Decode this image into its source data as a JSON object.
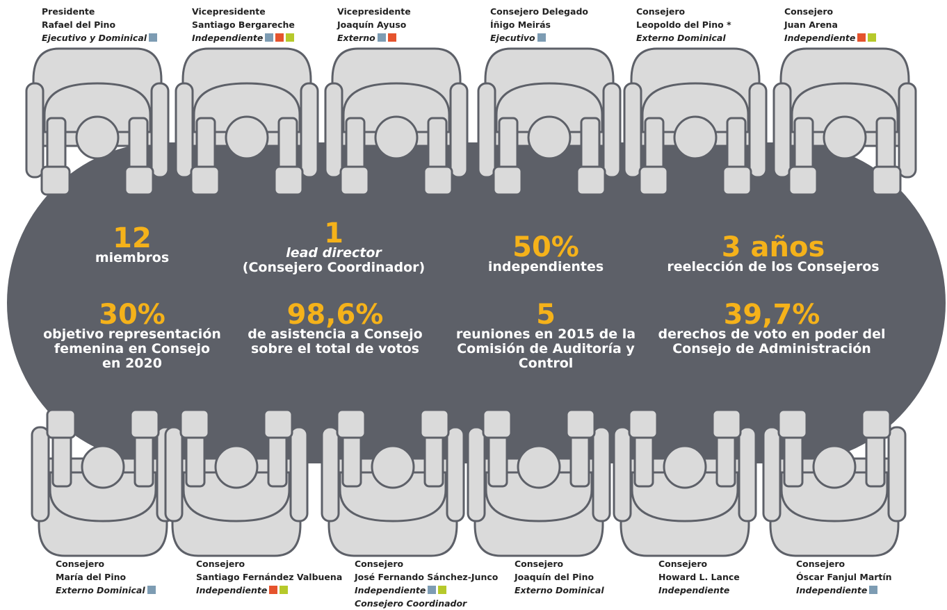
{
  "top_members": [
    {
      "role": "Presidente",
      "name": "Rafael del Pino",
      "type": "Ejecutivo y Dominical",
      "badges": [
        "#7d9cb3"
      ]
    },
    {
      "role": "Vicepresidente",
      "name": "Santiago Bergareche",
      "type": "Independiente",
      "badges": [
        "#7d9cb3",
        "#e5532d",
        "#b6c92b"
      ]
    },
    {
      "role": "Vicepresidente",
      "name": "Joaquín Ayuso",
      "type": "Externo",
      "badges": [
        "#7d9cb3",
        "#e5532d"
      ]
    },
    {
      "role": "Consejero Delegado",
      "name": "Íñigo Meirás",
      "type": "Ejecutivo",
      "badges": [
        "#7d9cb3"
      ]
    },
    {
      "role": "Consejero",
      "name": "Leopoldo del Pino *",
      "type": "Externo Dominical",
      "badges": []
    },
    {
      "role": "Consejero",
      "name": "Juan Arena",
      "type": "Independiente",
      "badges": [
        "#e5532d",
        "#b6c92b"
      ]
    }
  ],
  "bottom_members": [
    {
      "role": "Consejero",
      "name": "María del Pino",
      "type": "Externo Dominical",
      "badges": [
        "#7d9cb3"
      ]
    },
    {
      "role": "Consejero",
      "name": "Santiago Fernández Valbuena",
      "type": "Independiente",
      "badges": [
        "#e5532d",
        "#b6c92b"
      ]
    },
    {
      "role": "Consejero",
      "name": "José Fernando Sánchez-Junco",
      "type": "Independiente",
      "badges": [
        "#7d9cb3",
        "#b6c92b"
      ],
      "note": "Consejero Coordinador"
    },
    {
      "role": "Consejero",
      "name": "Joaquín del Pino",
      "type": "Externo Dominical",
      "badges": []
    },
    {
      "role": "Consejero",
      "name": "Howard L. Lance",
      "type": "Independiente",
      "badges": []
    },
    {
      "role": "Consejero",
      "name": "Óscar Fanjul Martín",
      "type": "Independiente",
      "badges": [
        "#7d9cb3"
      ]
    }
  ],
  "stats": [
    {
      "value": "12",
      "lines": [
        "miembros"
      ]
    },
    {
      "value": "1",
      "italic_line": "lead director",
      "lines": [
        "(Consejero Coordinador)"
      ]
    },
    {
      "value": "50%",
      "lines": [
        "independientes"
      ]
    },
    {
      "value": "3 años",
      "lines": [
        "reelección de los Consejeros"
      ]
    },
    {
      "value": "30%",
      "lines": [
        "objetivo representación",
        "femenina en Consejo",
        "en 2020"
      ]
    },
    {
      "value": "98,6%",
      "lines": [
        "de asistencia a Consejo",
        "sobre el total de votos"
      ]
    },
    {
      "value": "5",
      "lines": [
        "reuniones en 2015 de la",
        "Comisión de Auditoría y",
        "Control"
      ]
    },
    {
      "value": "39,7%",
      "lines": [
        "derechos de voto en poder del",
        "Consejo de Administración"
      ]
    }
  ]
}
